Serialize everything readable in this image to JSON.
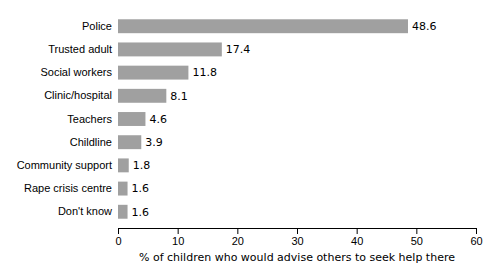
{
  "chart_data": {
    "type": "bar",
    "orientation": "horizontal",
    "categories": [
      "Police",
      "Trusted adult",
      "Social workers",
      "Clinic/hospital",
      "Teachers",
      "Childline",
      "Community support",
      "Rape crisis centre",
      "Don't know"
    ],
    "values": [
      48.6,
      17.4,
      11.8,
      8.1,
      4.6,
      3.9,
      1.8,
      1.6,
      1.6
    ],
    "color": "#a0a0a0",
    "xlabel": "% of children who would advise others to seek help there",
    "xlim": [
      0,
      60
    ],
    "xticks": [
      0,
      10,
      20,
      30,
      40,
      50,
      60
    ],
    "data_labels": true,
    "grid": false
  }
}
